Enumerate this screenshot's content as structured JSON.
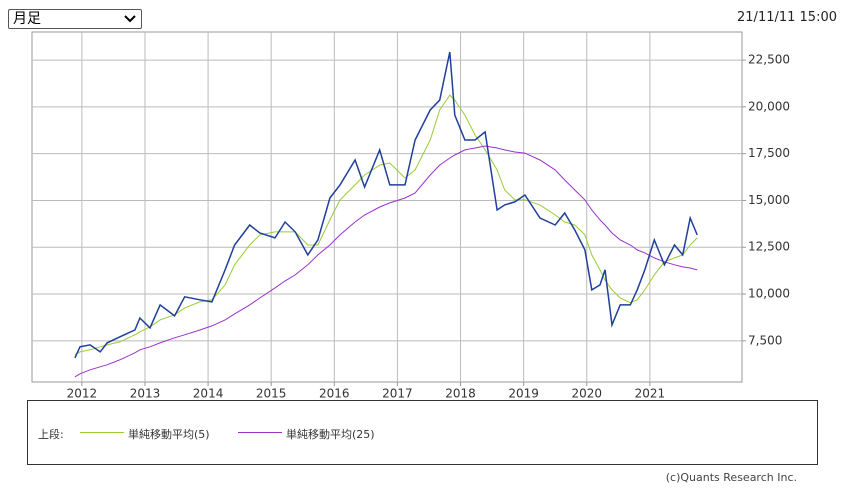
{
  "period_select": "月足",
  "timestamp": "21/11/11 15:00",
  "credit": "(c)Quants Research Inc.",
  "chart_data": {
    "type": "line",
    "legend_label": "上段:",
    "x": [
      2011.89,
      2011.97,
      2012.13,
      2012.29,
      2012.4,
      2012.6,
      2012.84,
      2012.92,
      2013.08,
      2013.24,
      2013.47,
      2013.63,
      2013.87,
      2014.06,
      2014.27,
      2014.42,
      2014.66,
      2014.82,
      2015.06,
      2015.22,
      2015.38,
      2015.58,
      2015.74,
      2015.93,
      2016.09,
      2016.33,
      2016.48,
      2016.72,
      2016.88,
      2017.12,
      2017.28,
      2017.52,
      2017.67,
      2017.83,
      2017.91,
      2018.07,
      2018.23,
      2018.39,
      2018.58,
      2018.7,
      2018.86,
      2019.02,
      2019.26,
      2019.5,
      2019.65,
      2019.81,
      2019.97,
      2020.08,
      2020.21,
      2020.29,
      2020.4,
      2020.53,
      2020.69,
      2020.8,
      2020.92,
      2021.07,
      2021.23,
      2021.39,
      2021.52,
      2021.64,
      2021.75
    ],
    "series": [
      {
        "color": "#1f3f9a",
        "values": [
          6590,
          7180,
          7280,
          6910,
          7390,
          7710,
          8080,
          8720,
          8190,
          9420,
          8830,
          9850,
          9690,
          9580,
          11290,
          12620,
          13690,
          13260,
          13000,
          13850,
          13320,
          12090,
          12890,
          15130,
          15830,
          17160,
          15720,
          17700,
          15830,
          15830,
          18230,
          19830,
          20360,
          22930,
          19560,
          18230,
          18230,
          18660,
          14490,
          14760,
          14920,
          15290,
          14060,
          13690,
          14330,
          13420,
          12360,
          10220,
          10490,
          11290,
          8350,
          9420,
          9420,
          10220,
          11290,
          12890,
          11560,
          12620,
          12090,
          14060,
          13160
        ]
      },
      {
        "name": "単純移動平均(5)",
        "color": "#99cc33",
        "values": [
          6750,
          6910,
          7020,
          7180,
          7280,
          7440,
          7820,
          7980,
          8250,
          8620,
          8890,
          9260,
          9580,
          9690,
          10490,
          11560,
          12620,
          13160,
          13320,
          13320,
          13320,
          12620,
          12620,
          13960,
          15030,
          15830,
          16360,
          16890,
          17000,
          16200,
          16630,
          18230,
          19830,
          20630,
          20360,
          19560,
          18500,
          17700,
          16630,
          15560,
          15030,
          15030,
          14760,
          14220,
          13850,
          13690,
          13160,
          12090,
          11290,
          10750,
          10220,
          9790,
          9530,
          9690,
          10220,
          11020,
          11720,
          11930,
          12090,
          12620,
          13000
        ]
      },
      {
        "name": "単純移動平均(25)",
        "color": "#9933cc",
        "values": [
          5580,
          5740,
          5950,
          6110,
          6220,
          6480,
          6860,
          7020,
          7180,
          7390,
          7660,
          7820,
          8080,
          8300,
          8620,
          8940,
          9420,
          9790,
          10330,
          10700,
          11020,
          11560,
          12090,
          12620,
          13160,
          13850,
          14220,
          14650,
          14870,
          15130,
          15400,
          16360,
          16890,
          17270,
          17430,
          17700,
          17800,
          17910,
          17800,
          17700,
          17590,
          17530,
          17160,
          16630,
          16090,
          15560,
          15030,
          14490,
          13960,
          13690,
          13260,
          12890,
          12620,
          12360,
          12200,
          11930,
          11720,
          11560,
          11450,
          11390,
          11290
        ]
      }
    ],
    "xlim": [
      2011.21,
      2022.46
    ],
    "xticks": [
      2012,
      2013,
      2014,
      2015,
      2016,
      2017,
      2018,
      2019,
      2020,
      2021
    ],
    "ylim": [
      5300,
      24000
    ],
    "yticks": [
      {
        "value": 7500,
        "label": "7,500"
      },
      {
        "value": 10000,
        "label": "10,000"
      },
      {
        "value": 12500,
        "label": "12,500"
      },
      {
        "value": 15000,
        "label": "15,000"
      },
      {
        "value": 17500,
        "label": "17,500"
      },
      {
        "value": 20000,
        "label": "20,000"
      },
      {
        "value": 22500,
        "label": "22,500"
      }
    ],
    "grid": true
  }
}
